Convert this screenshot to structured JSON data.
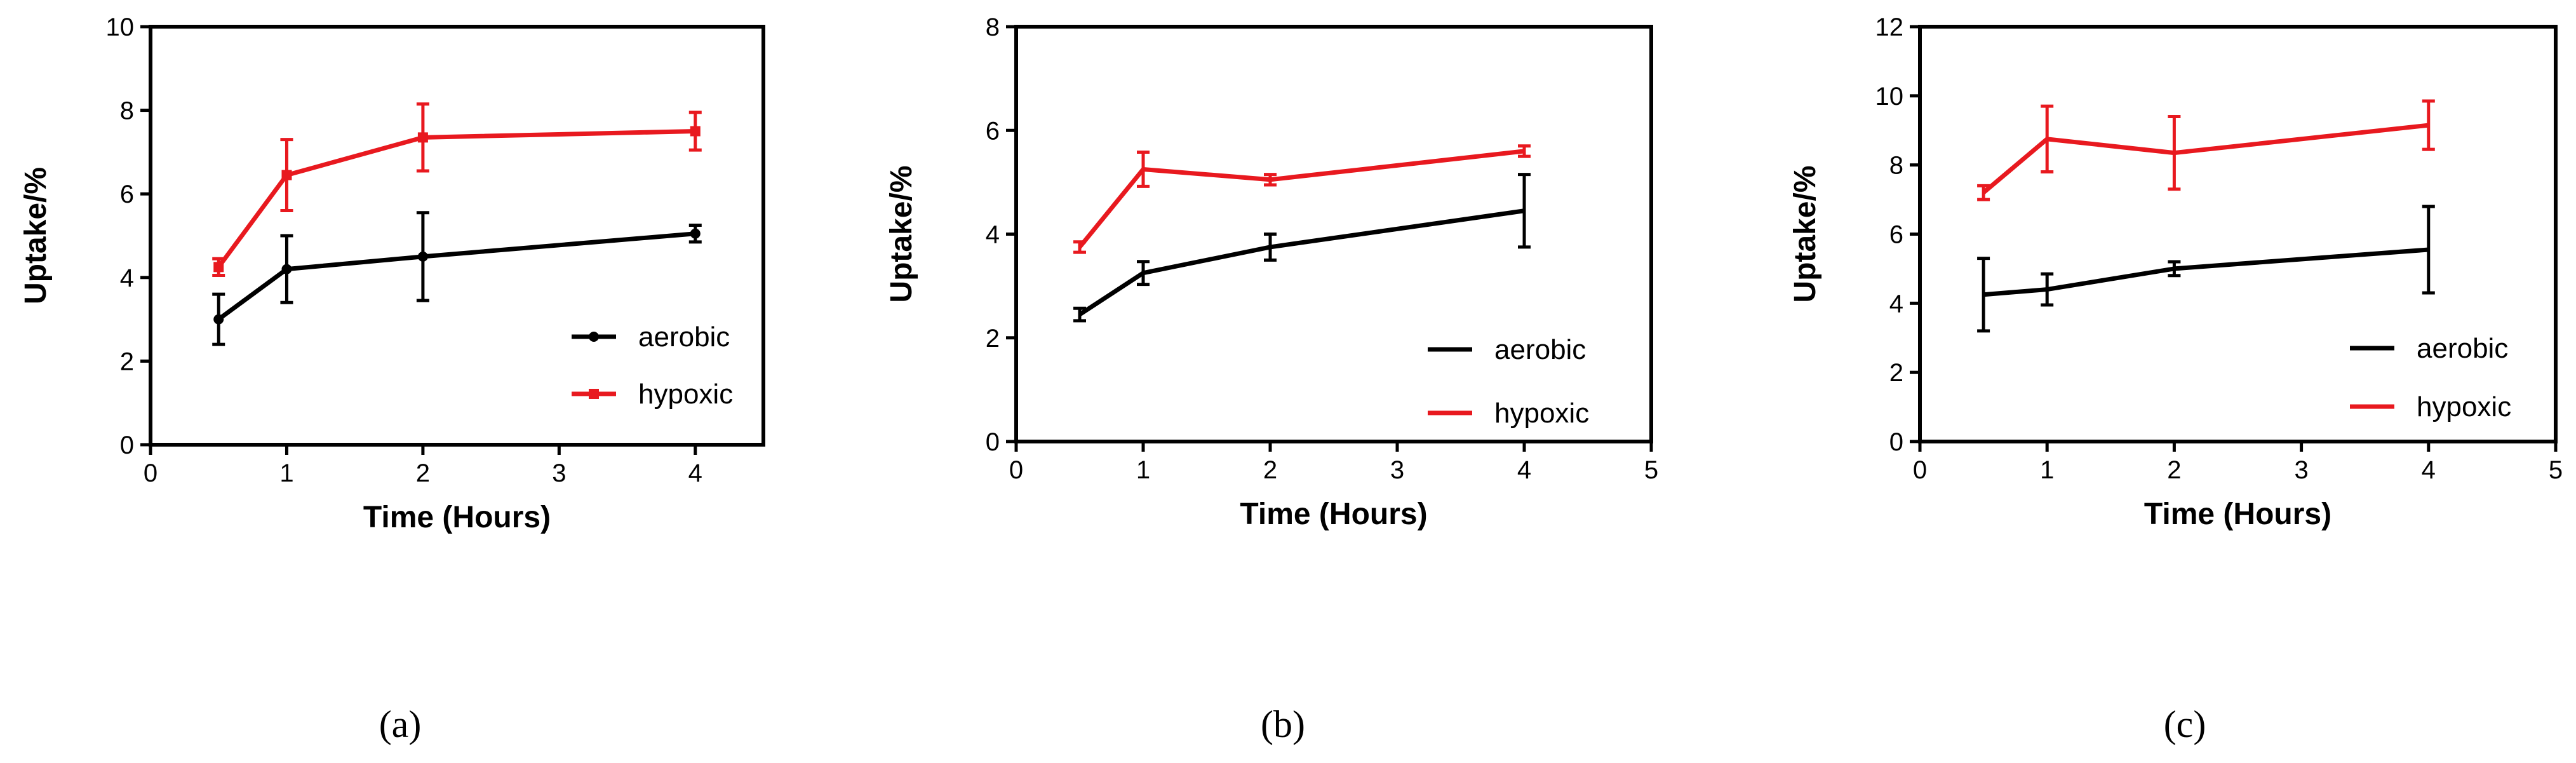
{
  "colors": {
    "aerobic": "#000000",
    "hypoxic": "#e8191f"
  },
  "chart_data": [
    {
      "type": "line",
      "panel_label": "(a)",
      "xlabel": "Time (Hours)",
      "ylabel": "Uptake/%",
      "xlim": [
        0,
        4.5
      ],
      "ylim": [
        0,
        10
      ],
      "xticks": [
        0,
        1,
        2,
        3,
        4
      ],
      "yticks": [
        0,
        2,
        4,
        6,
        8,
        10
      ],
      "markers": true,
      "legend_position": "right-middle",
      "series": [
        {
          "name": "aerobic",
          "color": "#000000",
          "x": [
            0.5,
            1,
            2,
            4
          ],
          "y": [
            3.0,
            4.2,
            4.5,
            5.05
          ],
          "err": [
            0.6,
            0.8,
            1.05,
            0.2
          ]
        },
        {
          "name": "hypoxic",
          "color": "#e8191f",
          "x": [
            0.5,
            1,
            2,
            4
          ],
          "y": [
            4.25,
            6.45,
            7.35,
            7.5
          ],
          "err": [
            0.2,
            0.85,
            0.8,
            0.45
          ]
        }
      ]
    },
    {
      "type": "line",
      "panel_label": "(b)",
      "xlabel": "Time (Hours)",
      "ylabel": "Uptake/%",
      "xlim": [
        0,
        5
      ],
      "ylim": [
        0,
        8
      ],
      "xticks": [
        0,
        1,
        2,
        3,
        4,
        5
      ],
      "yticks": [
        0,
        2,
        4,
        6,
        8
      ],
      "markers": false,
      "legend_position": "bottom-right",
      "series": [
        {
          "name": "aerobic",
          "color": "#000000",
          "x": [
            0.5,
            1,
            2,
            4
          ],
          "y": [
            2.45,
            3.25,
            3.75,
            4.45
          ],
          "err": [
            0.12,
            0.22,
            0.25,
            0.7
          ]
        },
        {
          "name": "hypoxic",
          "color": "#e8191f",
          "x": [
            0.5,
            1,
            2,
            4
          ],
          "y": [
            3.75,
            5.25,
            5.05,
            5.6
          ],
          "err": [
            0.1,
            0.33,
            0.1,
            0.1
          ]
        }
      ]
    },
    {
      "type": "line",
      "panel_label": "(c)",
      "xlabel": "Time (Hours)",
      "ylabel": "Uptake/%",
      "xlim": [
        0,
        5
      ],
      "ylim": [
        0,
        12
      ],
      "xticks": [
        0,
        1,
        2,
        3,
        4,
        5
      ],
      "yticks": [
        0,
        2,
        4,
        6,
        8,
        10,
        12
      ],
      "markers": false,
      "legend_position": "bottom-right",
      "series": [
        {
          "name": "aerobic",
          "color": "#000000",
          "x": [
            0.5,
            1,
            2,
            4
          ],
          "y": [
            4.25,
            4.4,
            5.0,
            5.55
          ],
          "err": [
            1.05,
            0.45,
            0.2,
            1.25
          ]
        },
        {
          "name": "hypoxic",
          "color": "#e8191f",
          "x": [
            0.5,
            1,
            2,
            4
          ],
          "y": [
            7.2,
            8.75,
            8.35,
            9.15
          ],
          "err": [
            0.2,
            0.95,
            1.05,
            0.7
          ]
        }
      ]
    }
  ]
}
